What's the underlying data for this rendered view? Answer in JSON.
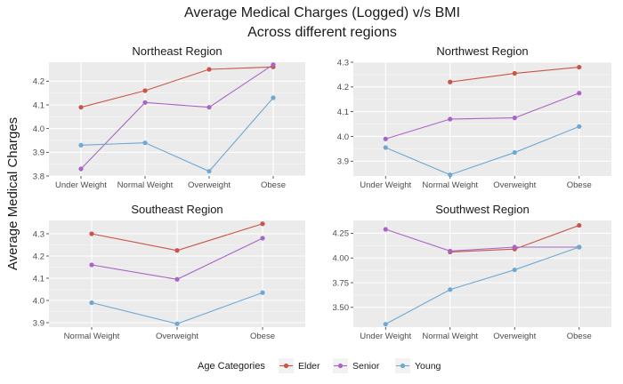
{
  "chart_data": {
    "type": "line",
    "title": "Average Medical Charges (Logged) v/s BMI",
    "subtitle": "Across different regions",
    "ylabel": "Average Medical Charges",
    "legend": {
      "title": "Age Categories",
      "position": "bottom",
      "entries": [
        "Elder",
        "Senior",
        "Young"
      ]
    },
    "grid": true,
    "series_colors": {
      "Elder": "#c9554a",
      "Senior": "#a865c6",
      "Young": "#6fa8d3"
    },
    "panels": [
      {
        "title": "Northeast Region",
        "categories": [
          "Under Weight",
          "Normal Weight",
          "Overweight",
          "Obese"
        ],
        "ylim": [
          3.8,
          4.28
        ],
        "yticks": [
          "3.8",
          "3.9",
          "4.0",
          "4.1",
          "4.2"
        ],
        "ytick_values": [
          3.8,
          3.9,
          4.0,
          4.1,
          4.2
        ],
        "series": [
          {
            "name": "Elder",
            "values": [
              4.09,
              4.16,
              4.25,
              4.26
            ]
          },
          {
            "name": "Senior",
            "values": [
              3.83,
              4.11,
              4.09,
              4.27
            ]
          },
          {
            "name": "Young",
            "values": [
              3.93,
              3.94,
              3.82,
              4.13
            ]
          }
        ]
      },
      {
        "title": "Northwest Region",
        "categories": [
          "Under Weight",
          "Normal Weight",
          "Overweight",
          "Obese"
        ],
        "ylim": [
          3.84,
          4.3
        ],
        "yticks": [
          "3.9",
          "4.0",
          "4.1",
          "4.2",
          "4.3"
        ],
        "ytick_values": [
          3.9,
          4.0,
          4.1,
          4.2,
          4.3
        ],
        "series": [
          {
            "name": "Elder",
            "values": [
              null,
              4.22,
              4.255,
              4.28
            ]
          },
          {
            "name": "Senior",
            "values": [
              3.99,
              4.07,
              4.075,
              4.175
            ]
          },
          {
            "name": "Young",
            "values": [
              3.955,
              3.845,
              3.935,
              4.04
            ]
          }
        ]
      },
      {
        "title": "Southeast Region",
        "categories": [
          "Normal Weight",
          "Overweight",
          "Obese"
        ],
        "ylim": [
          3.88,
          4.36
        ],
        "yticks": [
          "3.9",
          "4.0",
          "4.1",
          "4.2",
          "4.3"
        ],
        "ytick_values": [
          3.9,
          4.0,
          4.1,
          4.2,
          4.3
        ],
        "series": [
          {
            "name": "Elder",
            "values": [
              4.3,
              4.225,
              4.345
            ]
          },
          {
            "name": "Senior",
            "values": [
              4.16,
              4.095,
              4.28
            ]
          },
          {
            "name": "Young",
            "values": [
              3.99,
              3.895,
              4.035
            ]
          }
        ]
      },
      {
        "title": "Southwest Region",
        "categories": [
          "Under Weight",
          "Normal Weight",
          "Overweight",
          "Obese"
        ],
        "ylim": [
          3.3,
          4.38
        ],
        "yticks": [
          "3.50",
          "3.75",
          "4.00",
          "4.25"
        ],
        "ytick_values": [
          3.5,
          3.75,
          4.0,
          4.25
        ],
        "series": [
          {
            "name": "Elder",
            "values": [
              null,
              4.06,
              4.09,
              4.33
            ]
          },
          {
            "name": "Senior",
            "values": [
              4.29,
              4.07,
              4.11,
              4.11
            ]
          },
          {
            "name": "Young",
            "values": [
              3.33,
              3.68,
              3.88,
              4.11
            ]
          }
        ]
      }
    ]
  }
}
